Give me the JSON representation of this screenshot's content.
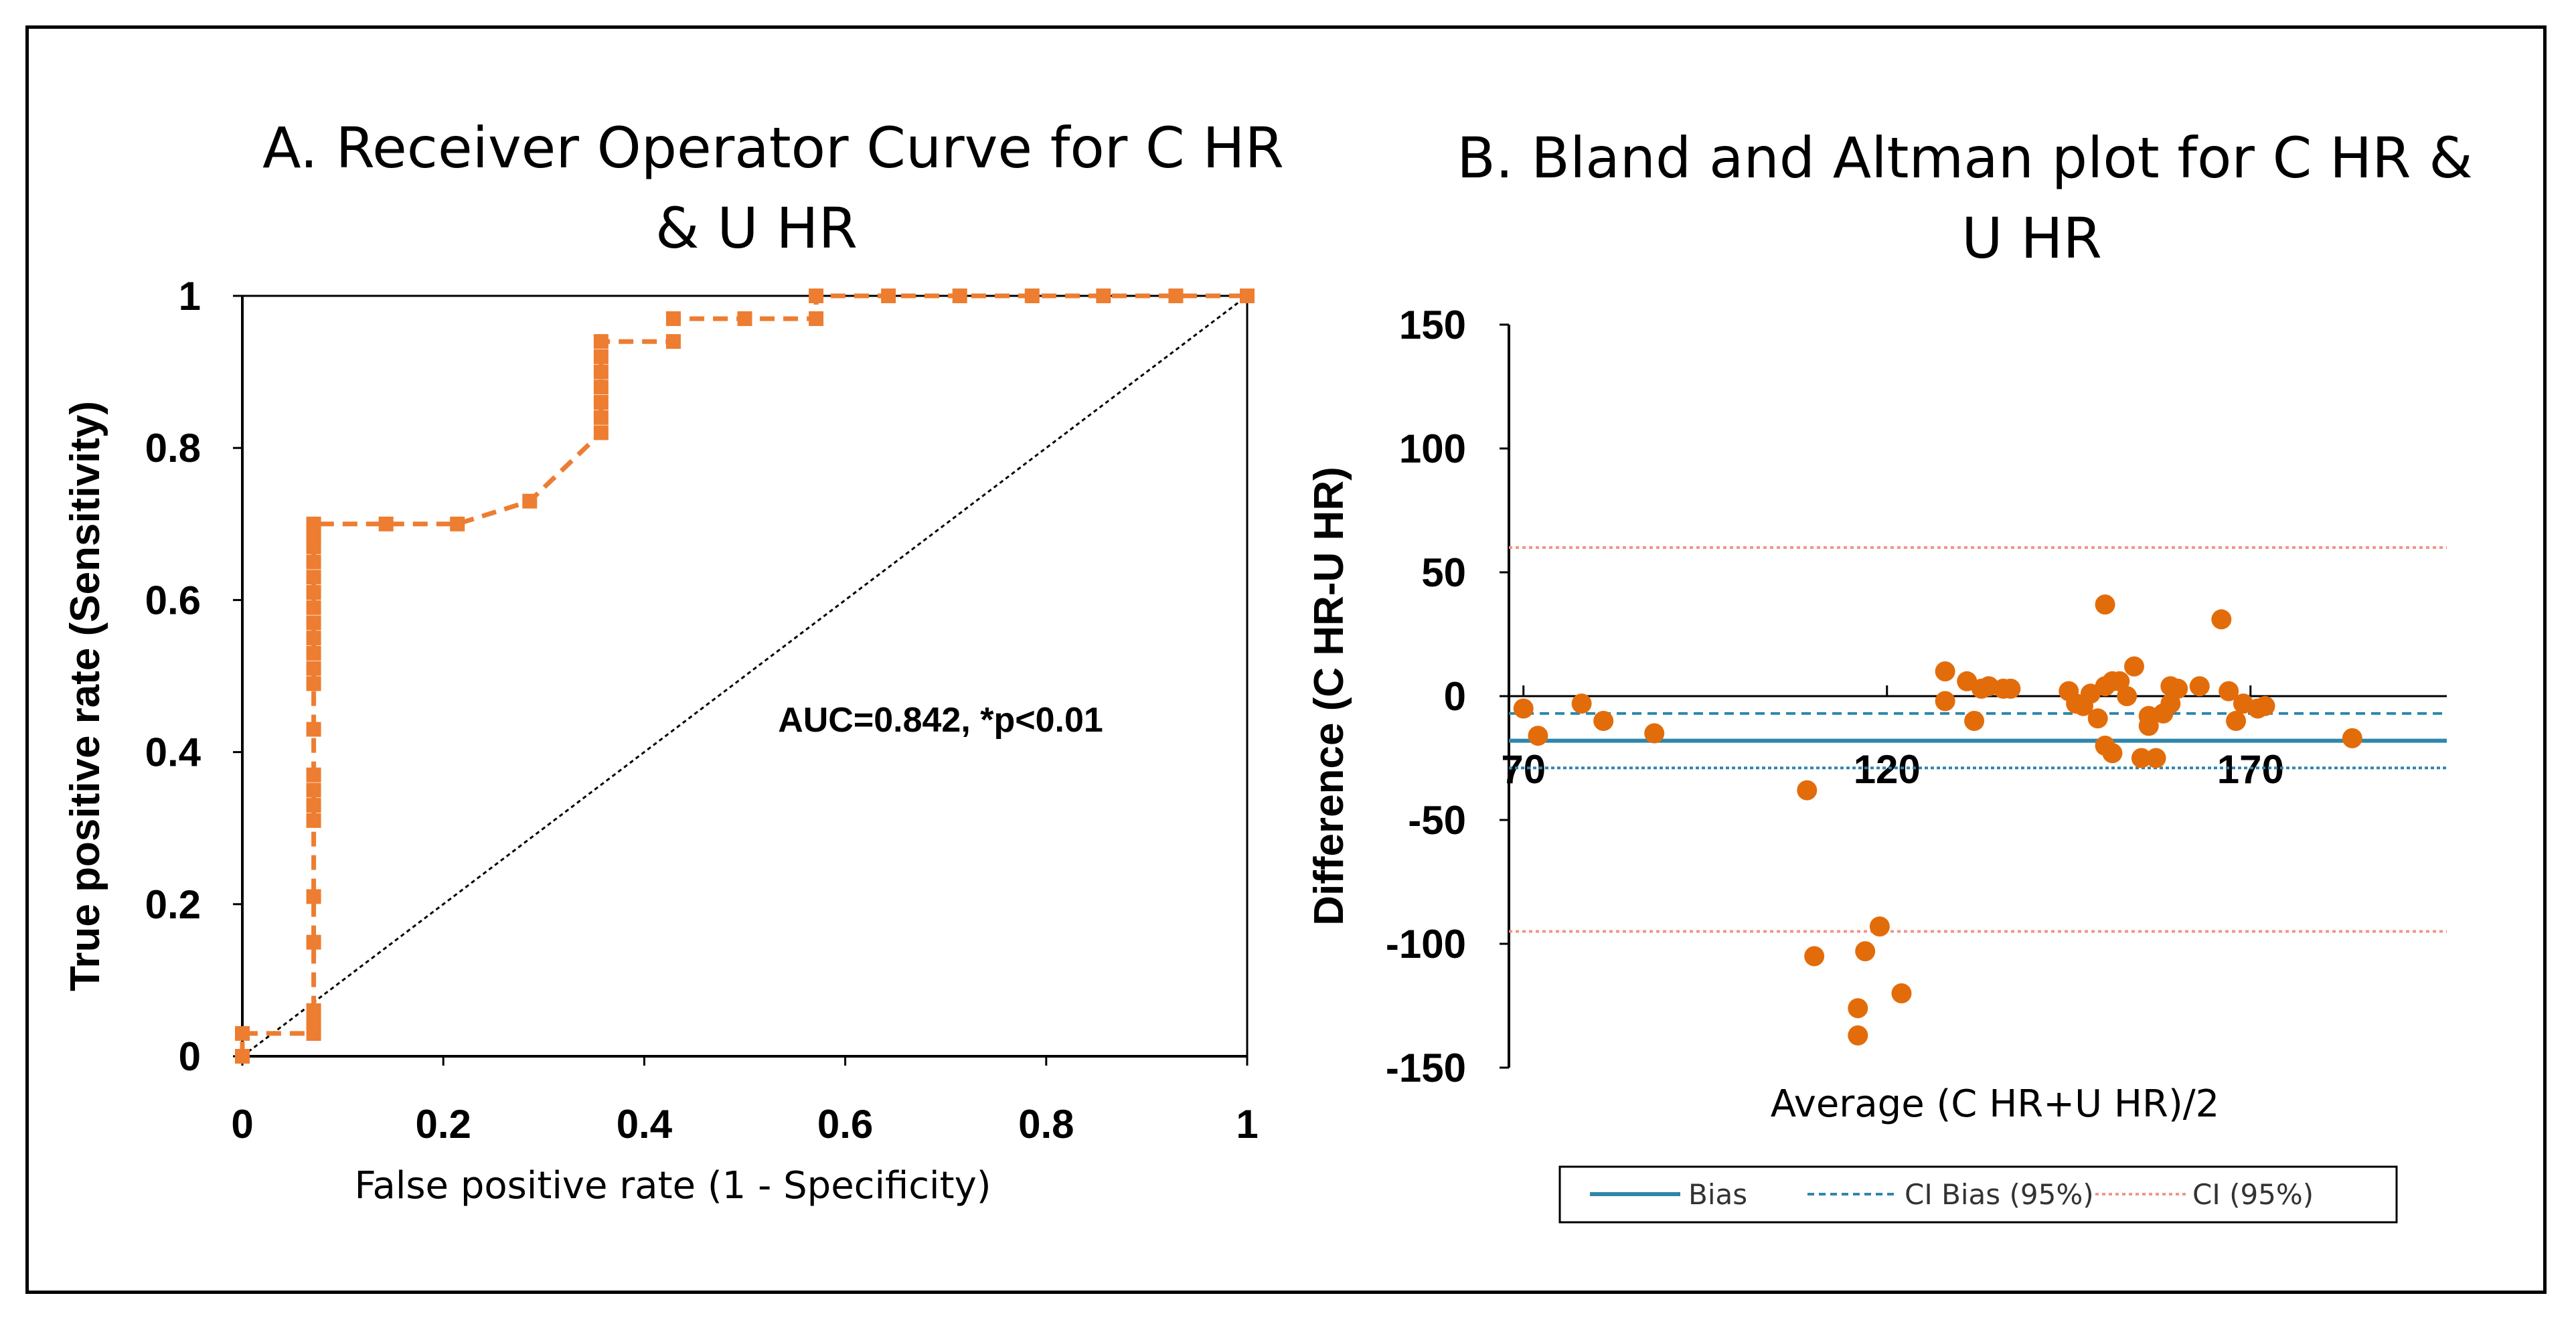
{
  "chart_data": [
    {
      "panel": "A",
      "type": "line",
      "title_lines": [
        "A. Receiver Operator Curve for  C HR",
        "&  U HR"
      ],
      "xlabel": "False positive rate (1 - Specificity)",
      "ylabel": "True positive rate (Sensitivity)",
      "xlim": [
        0,
        1
      ],
      "ylim": [
        0,
        1
      ],
      "xticks": [
        "0",
        "0.2",
        "0.4",
        "0.6",
        "0.8",
        "1"
      ],
      "yticks": [
        "0",
        "0.2",
        "0.4",
        "0.6",
        "0.8",
        "1"
      ],
      "annotation": "AUC=0.842, *p<0.01",
      "colors": {
        "roc": "#ED7D31",
        "reference": "#000000"
      },
      "series": [
        {
          "name": "ROC",
          "style": "dashed-square-markers",
          "x": [
            0,
            0,
            0.071,
            0.071,
            0.071,
            0.071,
            0.071,
            0.071,
            0.071,
            0.071,
            0.071,
            0.071,
            0.071,
            0.071,
            0.071,
            0.071,
            0.071,
            0.071,
            0.071,
            0.071,
            0.071,
            0.071,
            0.071,
            0.071,
            0.071,
            0.143,
            0.214,
            0.286,
            0.357,
            0.357,
            0.357,
            0.357,
            0.357,
            0.357,
            0.357,
            0.429,
            0.429,
            0.5,
            0.571,
            0.571,
            0.643,
            0.714,
            0.786,
            0.857,
            0.929,
            1
          ],
          "y": [
            0,
            0.03,
            0.03,
            0.045,
            0.06,
            0.15,
            0.21,
            0.31,
            0.33,
            0.35,
            0.37,
            0.43,
            0.49,
            0.51,
            0.53,
            0.55,
            0.57,
            0.59,
            0.61,
            0.63,
            0.65,
            0.67,
            0.68,
            0.69,
            0.7,
            0.7,
            0.7,
            0.73,
            0.82,
            0.84,
            0.86,
            0.88,
            0.9,
            0.92,
            0.94,
            0.94,
            0.97,
            0.97,
            0.97,
            1,
            1,
            1,
            1,
            1,
            1,
            1
          ]
        },
        {
          "name": "Reference",
          "style": "dotted",
          "x": [
            0,
            1
          ],
          "y": [
            0,
            1
          ]
        }
      ]
    },
    {
      "panel": "B",
      "type": "scatter",
      "title_lines": [
        "B. Bland and Altman plot for C HR &",
        "U HR"
      ],
      "xlabel": "Average (C HR+U HR)/2",
      "ylabel": "Difference (C HR-U HR)",
      "xlim": [
        68,
        197
      ],
      "ylim": [
        -150,
        150
      ],
      "xticks": [
        "70",
        "120",
        "170"
      ],
      "yticks": [
        "150",
        "100",
        "50",
        "0",
        "-50",
        "-100",
        "-150"
      ],
      "colors": {
        "points": "#E36C0A",
        "bias": "#2E86AB",
        "ci_bias": "#2E86AB",
        "ci": "#F2948A"
      },
      "reference_lines": [
        {
          "name": "Bias",
          "y": -18,
          "style": "solid"
        },
        {
          "name": "CI Bias (95%)",
          "y": -7,
          "style": "dashed"
        },
        {
          "name": "CI Bias (95%)",
          "y": -29,
          "style": "dashed"
        },
        {
          "name": "CI (95%)",
          "y": 60,
          "style": "dotted"
        },
        {
          "name": "CI (95%)",
          "y": -95,
          "style": "dotted"
        }
      ],
      "legend": [
        "Bias",
        "CI Bias (95%)",
        "CI (95%)"
      ],
      "legend_position": "bottom",
      "series": [
        {
          "name": "Differences",
          "x": [
            70,
            72,
            78,
            81,
            88,
            109,
            110,
            116,
            116,
            117,
            119,
            122,
            128,
            128,
            131,
            132,
            133,
            134,
            136,
            137,
            145,
            146,
            147,
            148,
            149,
            150,
            150,
            150,
            151,
            151,
            152,
            153,
            154,
            155,
            156,
            156,
            157,
            158,
            159,
            159,
            160,
            163,
            166,
            167,
            168,
            169,
            171,
            172,
            184
          ],
          "y": [
            -5,
            -16,
            -3,
            -10,
            -15,
            -38,
            -105,
            -126,
            -137,
            -103,
            -93,
            -120,
            -2,
            10,
            6,
            -10,
            3,
            4,
            3,
            3,
            2,
            -3,
            -4,
            1,
            -9,
            37,
            4,
            -20,
            -23,
            6,
            6,
            0,
            12,
            -25,
            -12,
            -8,
            -25,
            -7,
            4,
            -3,
            3,
            4,
            31,
            2,
            -10,
            -3,
            -5,
            -4,
            -17
          ]
        }
      ]
    }
  ]
}
